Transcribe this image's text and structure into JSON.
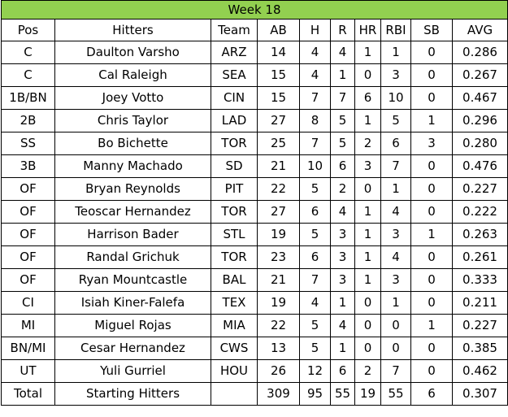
{
  "title": "Week 18",
  "title_bg": "#92d050",
  "columns": [
    "Pos",
    "Hitters",
    "Team",
    "AB",
    "H",
    "R",
    "HR",
    "RBI",
    "SB",
    "AVG"
  ],
  "rows": [
    [
      "C",
      "Daulton Varsho",
      "ARZ",
      "14",
      "4",
      "4",
      "1",
      "1",
      "0",
      "0.286"
    ],
    [
      "C",
      "Cal Raleigh",
      "SEA",
      "15",
      "4",
      "1",
      "0",
      "3",
      "0",
      "0.267"
    ],
    [
      "1B/BN",
      "Joey Votto",
      "CIN",
      "15",
      "7",
      "7",
      "6",
      "10",
      "0",
      "0.467"
    ],
    [
      "2B",
      "Chris Taylor",
      "LAD",
      "27",
      "8",
      "5",
      "1",
      "5",
      "1",
      "0.296"
    ],
    [
      "SS",
      "Bo Bichette",
      "TOR",
      "25",
      "7",
      "5",
      "2",
      "6",
      "3",
      "0.280"
    ],
    [
      "3B",
      "Manny Machado",
      "SD",
      "21",
      "10",
      "6",
      "3",
      "7",
      "0",
      "0.476"
    ],
    [
      "OF",
      "Bryan Reynolds",
      "PIT",
      "22",
      "5",
      "2",
      "0",
      "1",
      "0",
      "0.227"
    ],
    [
      "OF",
      "Teoscar Hernandez",
      "TOR",
      "27",
      "6",
      "4",
      "1",
      "4",
      "0",
      "0.222"
    ],
    [
      "OF",
      "Harrison Bader",
      "STL",
      "19",
      "5",
      "3",
      "1",
      "3",
      "1",
      "0.263"
    ],
    [
      "OF",
      "Randal Grichuk",
      "TOR",
      "23",
      "6",
      "3",
      "1",
      "4",
      "0",
      "0.261"
    ],
    [
      "OF",
      "Ryan Mountcastle",
      "BAL",
      "21",
      "7",
      "3",
      "1",
      "3",
      "0",
      "0.333"
    ],
    [
      "CI",
      "Isiah Kiner-Falefa",
      "TEX",
      "19",
      "4",
      "1",
      "0",
      "1",
      "0",
      "0.211"
    ],
    [
      "MI",
      "Miguel Rojas",
      "MIA",
      "22",
      "5",
      "4",
      "0",
      "0",
      "1",
      "0.227"
    ],
    [
      "BN/MI",
      "Cesar Hernandez",
      "CWS",
      "13",
      "5",
      "1",
      "0",
      "0",
      "0",
      "0.385"
    ],
    [
      "UT",
      "Yuli Gurriel",
      "HOU",
      "26",
      "12",
      "6",
      "2",
      "7",
      "0",
      "0.462"
    ]
  ],
  "total": [
    "Total",
    "Starting Hitters",
    "",
    "309",
    "95",
    "55",
    "19",
    "55",
    "6",
    "0.307"
  ]
}
